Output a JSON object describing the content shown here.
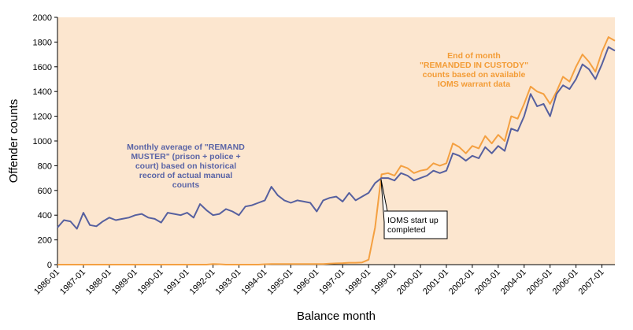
{
  "chart_data": {
    "type": "line",
    "y_label": "Offender counts",
    "x_label": "Balance month",
    "xlim": [
      "1986-01",
      "2007-07"
    ],
    "ylim": [
      0,
      2000
    ],
    "yticks": [
      0,
      200,
      400,
      600,
      800,
      1000,
      1200,
      1400,
      1600,
      1800,
      2000
    ],
    "xticks": [
      "1986-01",
      "1987-01",
      "1988-01",
      "1989-01",
      "1990-01",
      "1991-01",
      "1992-01",
      "1993-01",
      "1994-01",
      "1995-01",
      "1996-01",
      "1997-01",
      "1998-01",
      "1999-01",
      "2000-01",
      "2001-01",
      "2002-01",
      "2003-01",
      "2004-01",
      "2005-01",
      "2006-01",
      "2007-01"
    ],
    "background": "#fce6cf",
    "x": [
      "1986-01",
      "1986-04",
      "1986-07",
      "1986-10",
      "1987-01",
      "1987-04",
      "1987-07",
      "1987-10",
      "1988-01",
      "1988-04",
      "1988-07",
      "1988-10",
      "1989-01",
      "1989-04",
      "1989-07",
      "1989-10",
      "1990-01",
      "1990-04",
      "1990-07",
      "1990-10",
      "1991-01",
      "1991-04",
      "1991-07",
      "1991-10",
      "1992-01",
      "1992-04",
      "1992-07",
      "1992-10",
      "1993-01",
      "1993-04",
      "1993-07",
      "1993-10",
      "1994-01",
      "1994-04",
      "1994-07",
      "1994-10",
      "1995-01",
      "1995-04",
      "1995-07",
      "1995-10",
      "1996-01",
      "1996-04",
      "1996-07",
      "1996-10",
      "1997-01",
      "1997-04",
      "1997-07",
      "1997-10",
      "1998-01",
      "1998-04",
      "1998-07",
      "1998-10",
      "1999-01",
      "1999-04",
      "1999-07",
      "1999-10",
      "2000-01",
      "2000-04",
      "2000-07",
      "2000-10",
      "2001-01",
      "2001-04",
      "2001-07",
      "2001-10",
      "2002-01",
      "2002-04",
      "2002-07",
      "2002-10",
      "2003-01",
      "2003-04",
      "2003-07",
      "2003-10",
      "2004-01",
      "2004-04",
      "2004-07",
      "2004-10",
      "2005-01",
      "2005-04",
      "2005-07",
      "2005-10",
      "2006-01",
      "2006-04",
      "2006-07",
      "2006-10",
      "2007-01",
      "2007-04",
      "2007-07"
    ],
    "series": [
      {
        "color": "#56609f",
        "values": [
          300,
          360,
          350,
          290,
          420,
          320,
          310,
          350,
          380,
          360,
          370,
          380,
          400,
          410,
          380,
          370,
          340,
          420,
          410,
          400,
          420,
          380,
          490,
          440,
          400,
          410,
          450,
          430,
          400,
          470,
          480,
          500,
          520,
          630,
          560,
          520,
          500,
          520,
          510,
          500,
          430,
          520,
          540,
          550,
          510,
          580,
          520,
          550,
          580,
          660,
          700,
          700,
          680,
          740,
          720,
          680,
          700,
          720,
          760,
          740,
          760,
          900,
          880,
          840,
          880,
          860,
          950,
          900,
          960,
          920,
          1100,
          1080,
          1200,
          1380,
          1280,
          1300,
          1200,
          1380,
          1450,
          1420,
          1500,
          1620,
          1580,
          1500,
          1620,
          1760,
          1730
        ]
      },
      {
        "color": "#f4a041",
        "values": [
          0,
          0,
          0,
          0,
          0,
          0,
          0,
          0,
          0,
          0,
          0,
          0,
          0,
          0,
          0,
          0,
          0,
          0,
          0,
          0,
          0,
          0,
          0,
          0,
          5,
          3,
          0,
          0,
          0,
          0,
          0,
          0,
          3,
          5,
          5,
          5,
          5,
          5,
          5,
          5,
          5,
          5,
          8,
          10,
          12,
          15,
          15,
          18,
          40,
          300,
          730,
          740,
          720,
          800,
          780,
          740,
          760,
          770,
          820,
          800,
          820,
          980,
          950,
          900,
          960,
          940,
          1040,
          980,
          1050,
          1000,
          1200,
          1180,
          1300,
          1440,
          1400,
          1380,
          1300,
          1400,
          1520,
          1480,
          1600,
          1700,
          1640,
          1560,
          1720,
          1840,
          1810
        ]
      }
    ],
    "annotations": [
      {
        "lines": [
          "Monthly average of \"REMAND",
          "MUSTER\" (prison + police +",
          "court) based on historical",
          "record of actual manual",
          "counts"
        ]
      },
      {
        "lines": [
          "End of month",
          "\"REMANDED IN CUSTODY\"",
          "counts based on available",
          "IOMS warrant data"
        ]
      },
      {
        "lines": [
          "IOMS start up",
          "completed"
        ]
      }
    ]
  }
}
